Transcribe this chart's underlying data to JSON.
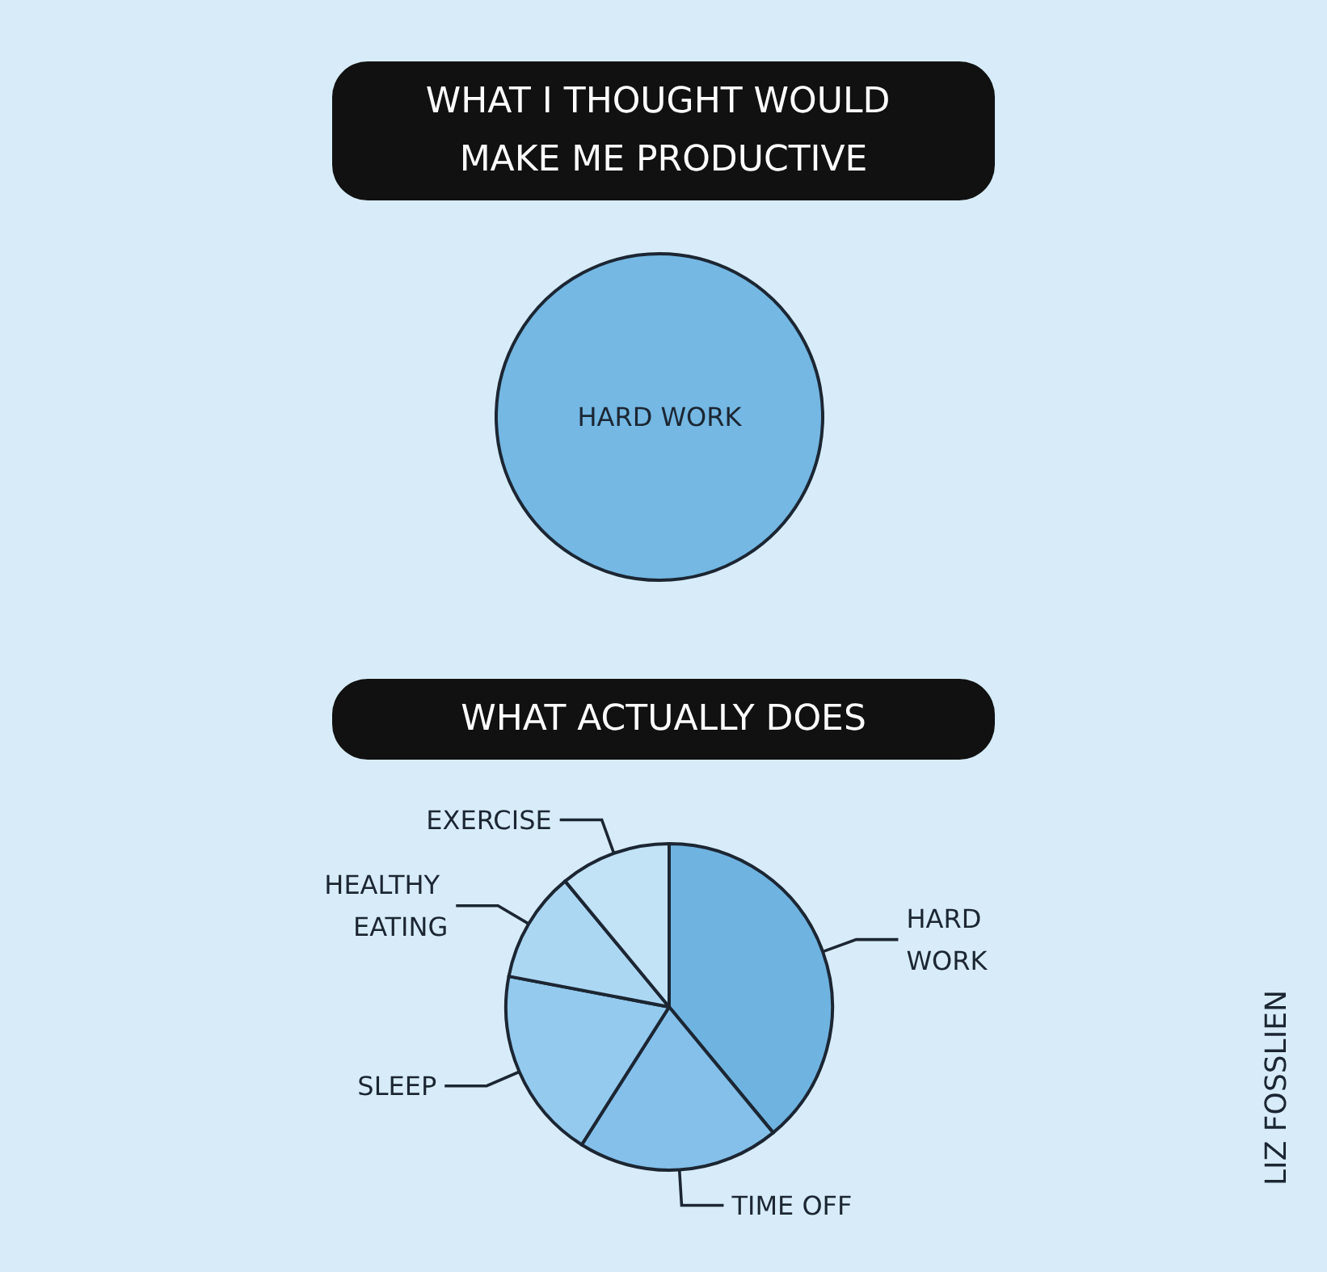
{
  "chart_data": [
    {
      "type": "pie",
      "title": "WHAT I THOUGHT WOULD MAKE ME PRODUCTIVE",
      "categories": [
        "HARD WORK"
      ],
      "values": [
        100
      ],
      "colors": [
        "#74b8e3"
      ]
    },
    {
      "type": "pie",
      "title": "WHAT ACTUALLY DOES",
      "categories": [
        "HARD WORK",
        "TIME OFF",
        "SLEEP",
        "HEALTHY EATING",
        "EXERCISE"
      ],
      "values": [
        39,
        20,
        19,
        11,
        11
      ],
      "colors": [
        "#6fb3e0",
        "#84c0e9",
        "#93caee",
        "#acd7f2",
        "#c2e2f6"
      ],
      "annotations": [
        "LIZ FOSSLIEN"
      ]
    }
  ]
}
